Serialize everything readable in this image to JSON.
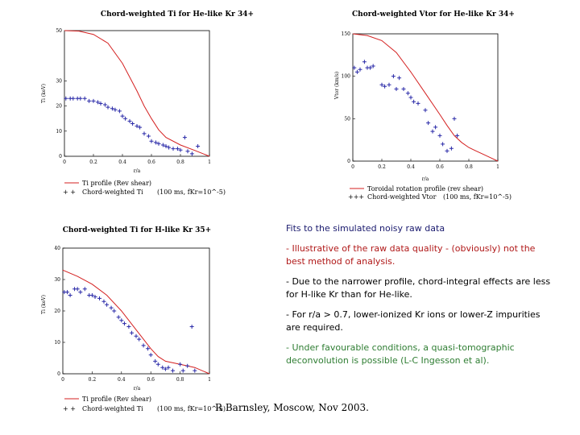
{
  "text": {
    "heading": "Fits to the simulated noisy raw data",
    "bullet1": "- Illustrative of the raw data quality - (obviously) not the best method of analysis.",
    "bullet2": "- Due to the narrower profile, chord-integral effects are less for H-like Kr than for He-like.",
    "bullet3": "- For r/a > 0.7, lower-ionized Kr ions or lower-Z impurities are required.",
    "bullet4": "- Under favourable conditions, a quasi-tomographic deconvolution is possible (L-C Ingesson et al)."
  },
  "footer": "R Barnsley, Moscow, Nov 2003.",
  "colors": {
    "model_line": "#d42020",
    "markers": "#2a2aa8",
    "heading": "#1a1a6e",
    "bullet_red": "#b01818",
    "bullet_green": "#2e7d32"
  },
  "chart_data": [
    {
      "type": "line",
      "title": "Chord-weighted Ti for He-like Kr 34+",
      "xlabel": "r/a",
      "ylabel": "Ti (keV)",
      "xlim": [
        0,
        1
      ],
      "ylim": [
        0,
        50
      ],
      "xticks": [
        "0",
        "0.2",
        "0.4",
        "0.6",
        "0.8",
        "1"
      ],
      "yticks": [
        "0",
        "10",
        "20",
        "30",
        "50"
      ],
      "series": [
        {
          "name": "Ti profile (Rev shear)",
          "style": "line",
          "points": [
            [
              0,
              50
            ],
            [
              0.1,
              49.8
            ],
            [
              0.2,
              48.5
            ],
            [
              0.3,
              45
            ],
            [
              0.4,
              37
            ],
            [
              0.5,
              26
            ],
            [
              0.55,
              20
            ],
            [
              0.6,
              15
            ],
            [
              0.65,
              10.5
            ],
            [
              0.7,
              7.5
            ],
            [
              0.8,
              4.5
            ],
            [
              0.9,
              2.3
            ],
            [
              1.0,
              0
            ]
          ]
        },
        {
          "name": "Chord-weighted Ti",
          "style": "markers",
          "points": [
            [
              0.01,
              23
            ],
            [
              0.04,
              23
            ],
            [
              0.06,
              23
            ],
            [
              0.09,
              23
            ],
            [
              0.11,
              23
            ],
            [
              0.14,
              23
            ],
            [
              0.17,
              22
            ],
            [
              0.2,
              22
            ],
            [
              0.23,
              21.5
            ],
            [
              0.25,
              21
            ],
            [
              0.28,
              20.5
            ],
            [
              0.3,
              19.5
            ],
            [
              0.33,
              19
            ],
            [
              0.35,
              18.5
            ],
            [
              0.38,
              18
            ],
            [
              0.4,
              16
            ],
            [
              0.42,
              15
            ],
            [
              0.45,
              14
            ],
            [
              0.47,
              13
            ],
            [
              0.5,
              12
            ],
            [
              0.52,
              11.5
            ],
            [
              0.55,
              9
            ],
            [
              0.58,
              8
            ],
            [
              0.6,
              6
            ],
            [
              0.63,
              5.5
            ],
            [
              0.65,
              5
            ],
            [
              0.68,
              4.5
            ],
            [
              0.7,
              4
            ],
            [
              0.72,
              3.5
            ],
            [
              0.75,
              3
            ],
            [
              0.78,
              3
            ],
            [
              0.8,
              2.5
            ],
            [
              0.83,
              7.5
            ],
            [
              0.85,
              2
            ],
            [
              0.88,
              1
            ],
            [
              0.92,
              4
            ]
          ]
        }
      ],
      "legend": {
        "line_label": "Ti profile (Rev shear)",
        "marker_label": "Chord-weighted Ti",
        "note": "(100 ms, fKr=10^-5)"
      }
    },
    {
      "type": "line",
      "title": "Chord-weighted Vtor for He-like Kr 34+",
      "xlabel": "r/a",
      "ylabel": "Vtor (km/s)",
      "xlim": [
        0,
        1
      ],
      "ylim": [
        0,
        150
      ],
      "xticks": [
        "0",
        "0.2",
        "0.4",
        "0.6",
        "0.8",
        "1"
      ],
      "yticks": [
        "0",
        "50",
        "100",
        "150"
      ],
      "series": [
        {
          "name": "Toroidal rotation profile (rev shear)",
          "style": "line",
          "points": [
            [
              0,
              150
            ],
            [
              0.1,
              148
            ],
            [
              0.2,
              142
            ],
            [
              0.3,
              128
            ],
            [
              0.4,
              105
            ],
            [
              0.5,
              80
            ],
            [
              0.6,
              55
            ],
            [
              0.65,
              42
            ],
            [
              0.7,
              30
            ],
            [
              0.75,
              22
            ],
            [
              0.8,
              16
            ],
            [
              0.85,
              12
            ],
            [
              0.9,
              8
            ],
            [
              0.95,
              4
            ],
            [
              1.0,
              0
            ]
          ]
        },
        {
          "name": "Chord-weighted Vtor",
          "style": "markers",
          "points": [
            [
              0.01,
              110
            ],
            [
              0.03,
              105
            ],
            [
              0.05,
              108
            ],
            [
              0.08,
              117
            ],
            [
              0.1,
              110
            ],
            [
              0.12,
              110
            ],
            [
              0.14,
              112
            ],
            [
              0.2,
              90
            ],
            [
              0.22,
              88
            ],
            [
              0.25,
              90
            ],
            [
              0.28,
              100
            ],
            [
              0.3,
              85
            ],
            [
              0.32,
              98
            ],
            [
              0.35,
              85
            ],
            [
              0.38,
              80
            ],
            [
              0.4,
              75
            ],
            [
              0.42,
              70
            ],
            [
              0.45,
              68
            ],
            [
              0.5,
              60
            ],
            [
              0.52,
              45
            ],
            [
              0.55,
              35
            ],
            [
              0.57,
              40
            ],
            [
              0.6,
              30
            ],
            [
              0.62,
              20
            ],
            [
              0.65,
              12
            ],
            [
              0.68,
              15
            ],
            [
              0.7,
              50
            ],
            [
              0.72,
              30
            ]
          ]
        }
      ],
      "legend": {
        "line_label": "Toroidal rotation profile (rev shear)",
        "marker_label": "Chord-weighted Vtor",
        "note": "(100 ms, fKr=10^-5)"
      }
    },
    {
      "type": "line",
      "title": "Chord-weighted Ti for H-like Kr 35+",
      "xlabel": "r/a",
      "ylabel": "Ti (keV)",
      "xlim": [
        0,
        1
      ],
      "ylim": [
        0,
        40
      ],
      "xticks": [
        "0",
        "0.2",
        "0.4",
        "0.6",
        "0.8",
        "1"
      ],
      "yticks": [
        "0",
        "10",
        "20",
        "30",
        "40"
      ],
      "series": [
        {
          "name": "Ti profile (Rev shear)",
          "style": "line",
          "points": [
            [
              0,
              33
            ],
            [
              0.1,
              31
            ],
            [
              0.2,
              28.5
            ],
            [
              0.3,
              25
            ],
            [
              0.4,
              20
            ],
            [
              0.5,
              14
            ],
            [
              0.55,
              11
            ],
            [
              0.6,
              8
            ],
            [
              0.65,
              5.5
            ],
            [
              0.7,
              4
            ],
            [
              0.8,
              3
            ],
            [
              0.9,
              2
            ],
            [
              1.0,
              0
            ]
          ]
        },
        {
          "name": "Chord-weighted Ti",
          "style": "markers",
          "points": [
            [
              0.01,
              26
            ],
            [
              0.03,
              26
            ],
            [
              0.05,
              25
            ],
            [
              0.08,
              27
            ],
            [
              0.1,
              27
            ],
            [
              0.12,
              26
            ],
            [
              0.15,
              27
            ],
            [
              0.18,
              25
            ],
            [
              0.2,
              25
            ],
            [
              0.22,
              24.5
            ],
            [
              0.25,
              24
            ],
            [
              0.28,
              23
            ],
            [
              0.3,
              22
            ],
            [
              0.33,
              21
            ],
            [
              0.35,
              20
            ],
            [
              0.38,
              18
            ],
            [
              0.4,
              17
            ],
            [
              0.42,
              16
            ],
            [
              0.45,
              15
            ],
            [
              0.47,
              13
            ],
            [
              0.5,
              12
            ],
            [
              0.52,
              11
            ],
            [
              0.55,
              9
            ],
            [
              0.58,
              8
            ],
            [
              0.6,
              6
            ],
            [
              0.63,
              4
            ],
            [
              0.65,
              3
            ],
            [
              0.68,
              2
            ],
            [
              0.7,
              1.5
            ],
            [
              0.72,
              2
            ],
            [
              0.75,
              1
            ],
            [
              0.8,
              3
            ],
            [
              0.82,
              1
            ],
            [
              0.85,
              2.5
            ],
            [
              0.88,
              15
            ],
            [
              0.9,
              1
            ]
          ]
        }
      ],
      "legend": {
        "line_label": "Ti profile (Rev shear)",
        "marker_label": "Chord-weighted Ti",
        "note": "(100 ms, fKr=10^-5)"
      }
    }
  ]
}
